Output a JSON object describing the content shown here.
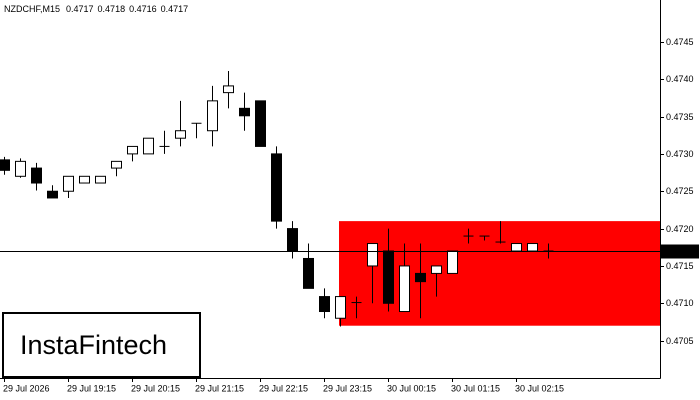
{
  "chart_data": {
    "type": "candlestick",
    "title": "NZDCHF,M15",
    "header_values": [
      0.4717,
      0.4718,
      0.4716,
      0.4717
    ],
    "categories": [
      "29 Jul 2026",
      null,
      null,
      null,
      "29 Jul 19:15",
      null,
      null,
      null,
      "29 Jul 20:15",
      null,
      null,
      null,
      "29 Jul 21:15",
      null,
      null,
      null,
      "29 Jul 22:15",
      null,
      null,
      null,
      "29 Jul 23:15",
      null,
      null,
      null,
      "30 Jul 00:15",
      null,
      null,
      null,
      "30 Jul 01:15",
      null,
      null,
      null,
      "30 Jul 02:15",
      null,
      null
    ],
    "open": [
      0.47292,
      0.4727,
      0.47281,
      0.4725,
      0.4725,
      0.47261,
      0.47261,
      0.47281,
      0.473,
      0.473,
      0.4731,
      0.47321,
      0.4734,
      0.47331,
      0.47382,
      0.47361,
      0.47371,
      0.473,
      0.472,
      0.4716,
      0.47109,
      0.4708,
      0.471,
      0.4715,
      0.4717,
      0.47089,
      0.4714,
      0.4714,
      0.4714,
      0.47188,
      0.47188,
      0.4718,
      0.4717,
      0.4717,
      0.4717
    ],
    "high": [
      0.47296,
      0.47294,
      0.47288,
      0.47258,
      0.4727,
      0.4727,
      0.4727,
      0.4729,
      0.4731,
      0.47321,
      0.47331,
      0.47371,
      0.47341,
      0.47391,
      0.47411,
      0.47382,
      0.47371,
      0.4731,
      0.4721,
      0.4718,
      0.4712,
      0.47109,
      0.47109,
      0.4718,
      0.472,
      0.4718,
      0.4718,
      0.4715,
      0.4717,
      0.472,
      0.4719,
      0.4721,
      0.4718,
      0.4718,
      0.4718
    ],
    "low": [
      0.47272,
      0.47268,
      0.47251,
      0.47241,
      0.47241,
      0.47261,
      0.47261,
      0.4727,
      0.4729,
      0.473,
      0.473,
      0.4731,
      0.47321,
      0.4731,
      0.47361,
      0.47331,
      0.4731,
      0.472,
      0.4716,
      0.4712,
      0.4708,
      0.47069,
      0.4708,
      0.471,
      0.47089,
      0.47089,
      0.4708,
      0.47109,
      0.4714,
      0.4718,
      0.47184,
      0.4718,
      0.4717,
      0.4717,
      0.4716
    ],
    "close": [
      0.47278,
      0.4729,
      0.47261,
      0.47241,
      0.4727,
      0.4727,
      0.4727,
      0.4729,
      0.4731,
      0.47321,
      0.47309,
      0.47331,
      0.47341,
      0.47371,
      0.47391,
      0.47351,
      0.4731,
      0.4721,
      0.4717,
      0.4712,
      0.47089,
      0.47109,
      0.47101,
      0.4718,
      0.471,
      0.4715,
      0.47129,
      0.4715,
      0.4717,
      0.4719,
      0.4719,
      0.47182,
      0.4718,
      0.4718,
      0.4717
    ],
    "ylim": [
      0.47,
      0.47506
    ],
    "yticks": [
      0.4705,
      {
        "value": 0.471,
        "label": "0.4710"
      },
      0.4715,
      {
        "value": 0.472,
        "label": "0.4720"
      },
      0.4725,
      {
        "value": 0.473,
        "label": "0.4730"
      },
      0.4735,
      {
        "value": 0.474,
        "label": "0.4740"
      },
      0.4745
    ],
    "last_price": 0.4717,
    "zone": {
      "high": 0.4721,
      "low": 0.4707,
      "color": "#ff0000"
    },
    "watermark": "InstaFintech"
  }
}
